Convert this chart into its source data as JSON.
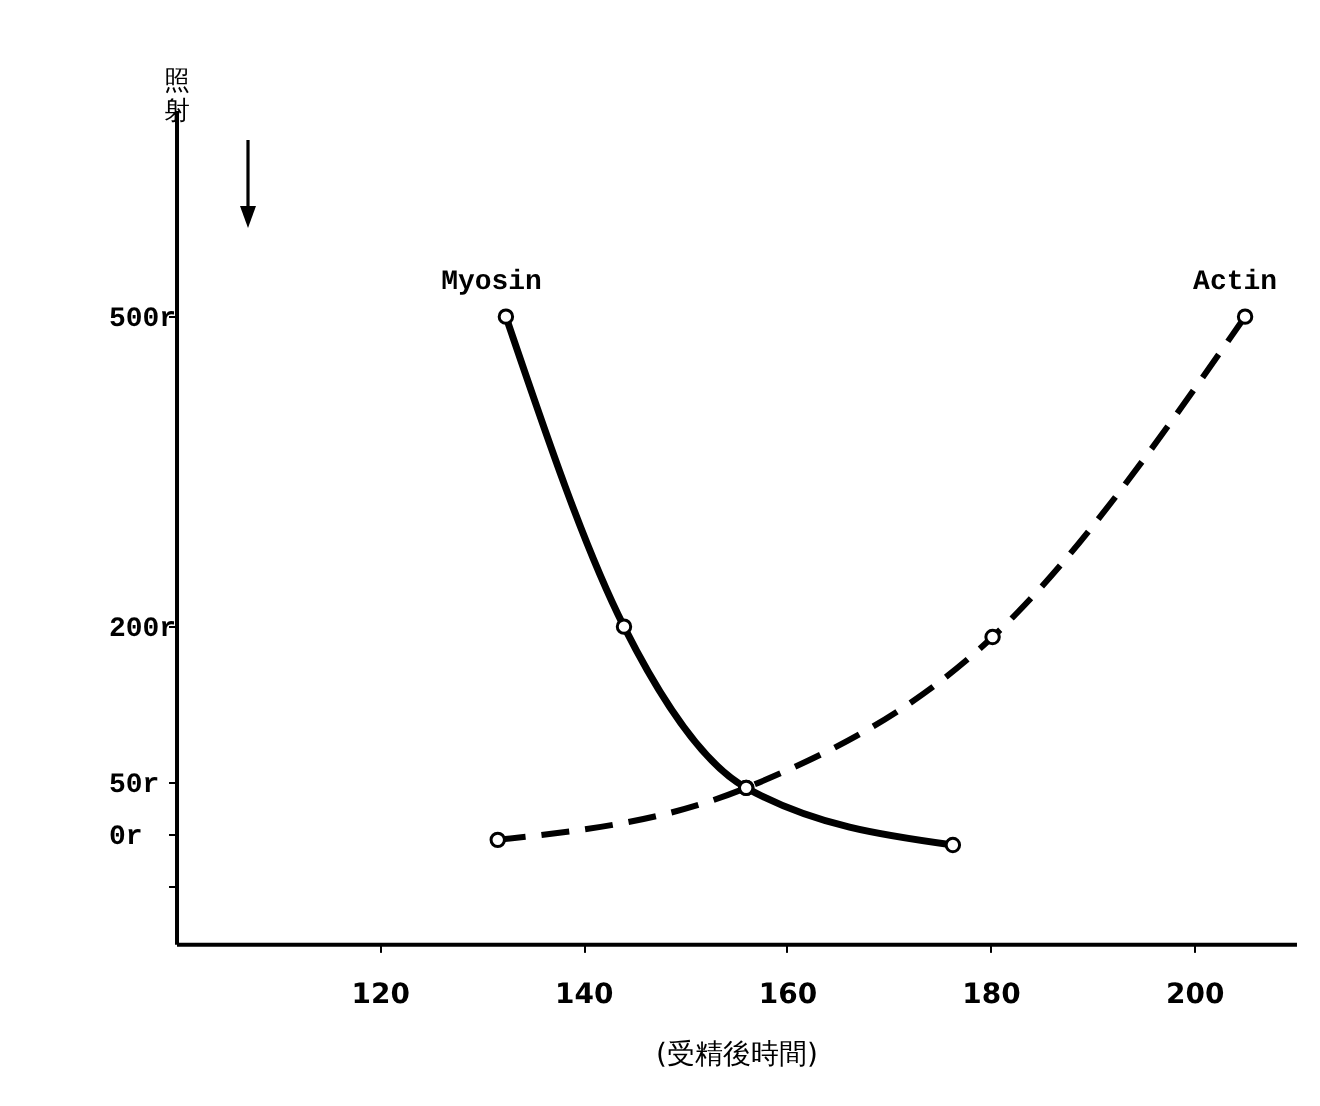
{
  "chart_data": {
    "type": "line",
    "xlabel": "(受精後時間)",
    "ylabel": "照射",
    "xlim": [
      100,
      210
    ],
    "xticks": [
      120,
      140,
      160,
      180,
      200
    ],
    "ylim": [
      -105,
      700
    ],
    "yticks": [
      {
        "value": -50,
        "label": null
      },
      {
        "value": 0,
        "label": "0r"
      },
      {
        "value": 50,
        "label": "50r"
      },
      {
        "value": 200,
        "label": "200r"
      },
      {
        "value": 500,
        "label": "500r"
      }
    ],
    "series": [
      {
        "name": "Myosin",
        "color": "#000000",
        "line_style": "solid",
        "x": [
          132.4,
          144,
          156,
          176.3
        ],
        "values": [
          500,
          200,
          45,
          -10
        ]
      },
      {
        "name": "Actin",
        "color": "#000000",
        "line_style": "dashed",
        "x": [
          131.6,
          156,
          180.2,
          205
        ],
        "values": [
          -5,
          45,
          190,
          500
        ]
      }
    ],
    "marker": "circle",
    "grid": false
  }
}
